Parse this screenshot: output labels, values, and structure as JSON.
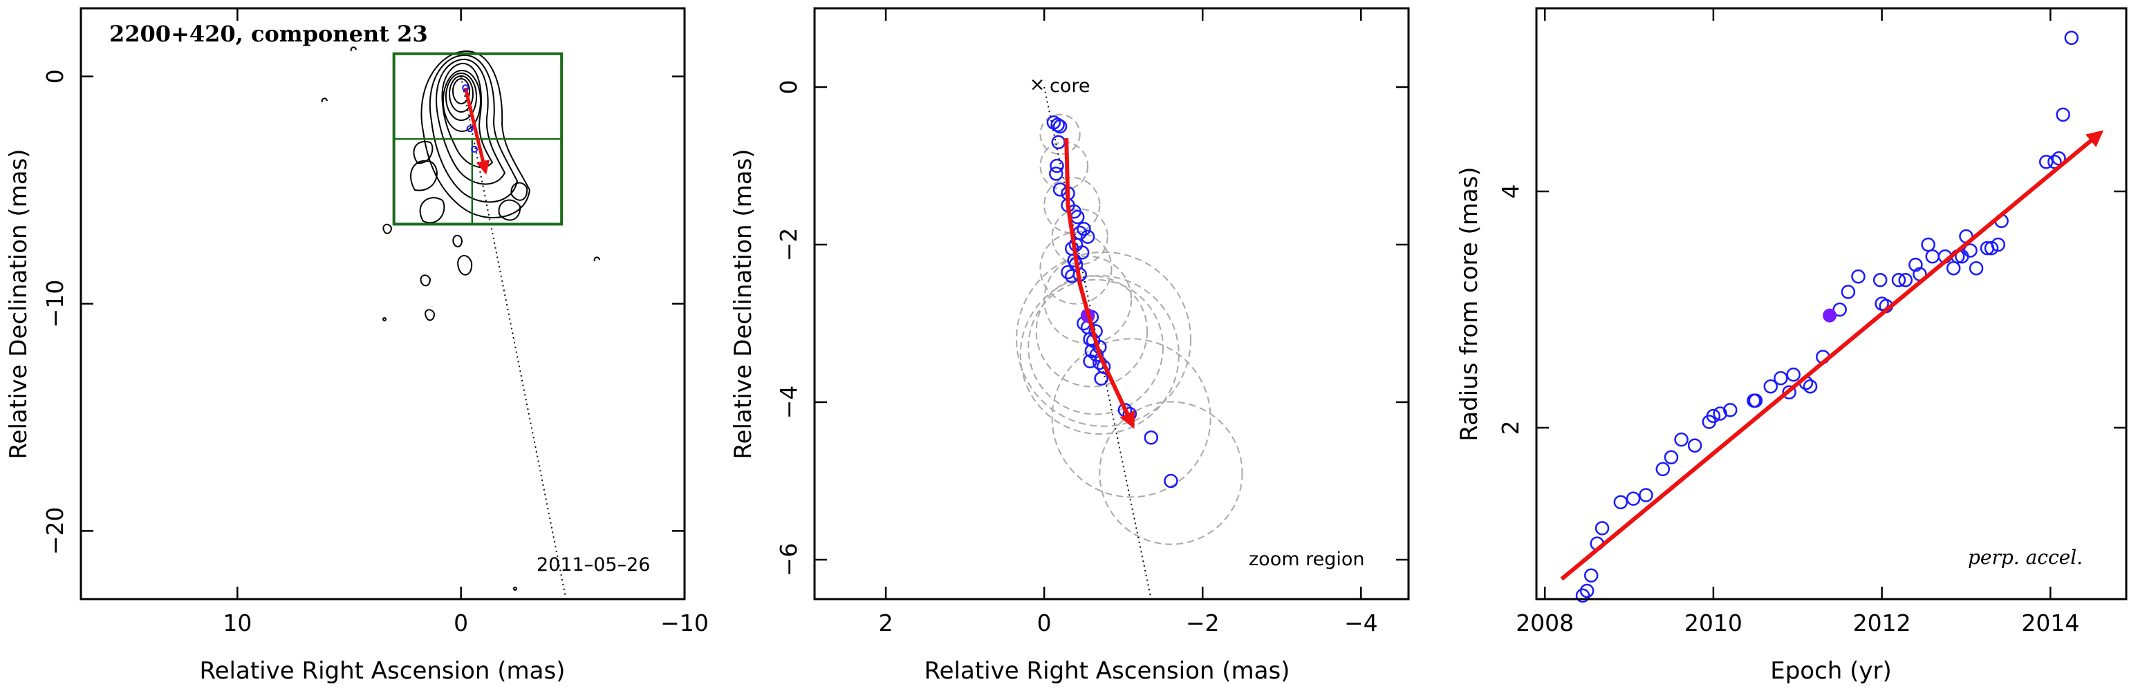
{
  "colors": {
    "points": "#1a1aff",
    "arrow": "#ee1111",
    "box": "#1a6b1a",
    "ellipses": "#a8a8a8",
    "filled_point": "#7a1aff"
  },
  "chart_data": [
    {
      "type": "scatter",
      "title": "2200+420, component 23",
      "date": "2011–05–26",
      "xlabel": "Relative Right Ascension (mas)",
      "ylabel": "Relative Declination (mas)",
      "xlim": [
        17,
        -10
      ],
      "ylim": [
        -23,
        3
      ],
      "xticks": [
        10,
        0,
        -10
      ],
      "yticks": [
        0,
        -10,
        -20
      ],
      "xtick_labels": [
        "10",
        "0",
        "−10"
      ],
      "ytick_labels": [
        "0",
        "−10",
        "−20"
      ],
      "zoom_box": {
        "x": [
          3,
          -4.5
        ],
        "y": [
          1,
          -6.5
        ]
      },
      "jet_axis": {
        "x": [
          0,
          -4.7
        ],
        "y": [
          0,
          -23
        ]
      },
      "feature_track": {
        "x": [
          -0.2,
          -1.1
        ],
        "y": [
          -0.5,
          -4.2
        ]
      }
    },
    {
      "type": "scatter",
      "xlabel": "Relative Right Ascension (mas)",
      "ylabel": "Relative Declination (mas)",
      "xlim": [
        2.9,
        -4.6
      ],
      "ylim": [
        -6.5,
        1
      ],
      "xticks": [
        2,
        0,
        -2,
        -4
      ],
      "yticks": [
        0,
        -2,
        -4,
        -6
      ],
      "xtick_labels": [
        "2",
        "0",
        "−2",
        "−4"
      ],
      "ytick_labels": [
        "0",
        "−2",
        "−4",
        "−6"
      ],
      "core_label": "core",
      "region_label": "zoom region",
      "points": [
        {
          "x": -0.12,
          "y": -0.45
        },
        {
          "x": -0.17,
          "y": -0.48
        },
        {
          "x": -0.2,
          "y": -0.5
        },
        {
          "x": -0.18,
          "y": -0.7
        },
        {
          "x": -0.16,
          "y": -1.0
        },
        {
          "x": -0.15,
          "y": -1.1
        },
        {
          "x": -0.2,
          "y": -1.3
        },
        {
          "x": -0.3,
          "y": -1.35
        },
        {
          "x": -0.3,
          "y": -1.5
        },
        {
          "x": -0.38,
          "y": -1.58
        },
        {
          "x": -0.42,
          "y": -1.65
        },
        {
          "x": -0.5,
          "y": -1.8
        },
        {
          "x": -0.45,
          "y": -1.85
        },
        {
          "x": -0.55,
          "y": -1.9
        },
        {
          "x": -0.4,
          "y": -2.0
        },
        {
          "x": -0.35,
          "y": -2.05
        },
        {
          "x": -0.48,
          "y": -2.1
        },
        {
          "x": -0.38,
          "y": -2.2
        },
        {
          "x": -0.4,
          "y": -2.25
        },
        {
          "x": -0.3,
          "y": -2.35
        },
        {
          "x": -0.35,
          "y": -2.4
        },
        {
          "x": -0.45,
          "y": -2.38
        },
        {
          "x": -0.55,
          "y": -2.9
        },
        {
          "x": -0.6,
          "y": -2.92
        },
        {
          "x": -0.5,
          "y": -3.0
        },
        {
          "x": -0.55,
          "y": -3.05
        },
        {
          "x": -0.65,
          "y": -3.1
        },
        {
          "x": -0.58,
          "y": -3.2
        },
        {
          "x": -0.62,
          "y": -3.22
        },
        {
          "x": -0.7,
          "y": -3.3
        },
        {
          "x": -0.6,
          "y": -3.35
        },
        {
          "x": -0.66,
          "y": -3.4
        },
        {
          "x": -0.58,
          "y": -3.48
        },
        {
          "x": -0.7,
          "y": -3.5
        },
        {
          "x": -0.75,
          "y": -3.55
        },
        {
          "x": -0.72,
          "y": -3.7
        },
        {
          "x": -1.02,
          "y": -4.1
        },
        {
          "x": -1.08,
          "y": -4.15
        },
        {
          "x": -1.35,
          "y": -4.45
        },
        {
          "x": -1.6,
          "y": -5.0
        }
      ],
      "filled_point": {
        "x": -0.55,
        "y": -2.9
      },
      "ellipses": [
        {
          "x": -0.2,
          "y": -0.6,
          "r": 0.25
        },
        {
          "x": -0.25,
          "y": -1.0,
          "r": 0.3
        },
        {
          "x": -0.35,
          "y": -1.5,
          "r": 0.35
        },
        {
          "x": -0.45,
          "y": -1.9,
          "r": 0.35
        },
        {
          "x": -0.4,
          "y": -2.3,
          "r": 0.45
        },
        {
          "x": -0.55,
          "y": -2.7,
          "r": 0.55
        },
        {
          "x": -0.6,
          "y": -3.1,
          "r": 0.7
        },
        {
          "x": -0.65,
          "y": -3.3,
          "r": 0.85
        },
        {
          "x": -0.7,
          "y": -3.4,
          "r": 1.0
        },
        {
          "x": -0.75,
          "y": -3.2,
          "r": 1.1
        },
        {
          "x": -1.1,
          "y": -4.2,
          "r": 1.0
        },
        {
          "x": -1.6,
          "y": -4.9,
          "r": 0.9
        }
      ],
      "jet_axis": {
        "x": [
          0,
          -1.35
        ],
        "y": [
          0,
          -6.5
        ]
      },
      "feature_track": {
        "x": [
          -0.28,
          -0.3,
          -0.45,
          -0.7,
          -1.12
        ],
        "y": [
          -0.65,
          -1.5,
          -2.5,
          -3.4,
          -4.3
        ]
      }
    },
    {
      "type": "scatter",
      "xlabel": "Epoch (yr)",
      "ylabel": "Radius from core (mas)",
      "annotation": "perp. accel.",
      "xlim": [
        2007.9,
        2014.9
      ],
      "ylim": [
        0.55,
        5.55
      ],
      "xticks": [
        2008,
        2010,
        2012,
        2014
      ],
      "yticks": [
        2,
        4
      ],
      "xtick_labels": [
        "2008",
        "2010",
        "2012",
        "2014"
      ],
      "ytick_labels": [
        "2",
        "4"
      ],
      "points": [
        {
          "x": 2008.45,
          "y": 0.58
        },
        {
          "x": 2008.5,
          "y": 0.62
        },
        {
          "x": 2008.55,
          "y": 0.75
        },
        {
          "x": 2008.62,
          "y": 1.02
        },
        {
          "x": 2008.68,
          "y": 1.15
        },
        {
          "x": 2008.9,
          "y": 1.37
        },
        {
          "x": 2009.05,
          "y": 1.4
        },
        {
          "x": 2009.2,
          "y": 1.43
        },
        {
          "x": 2009.4,
          "y": 1.65
        },
        {
          "x": 2009.5,
          "y": 1.75
        },
        {
          "x": 2009.62,
          "y": 1.9
        },
        {
          "x": 2009.78,
          "y": 1.85
        },
        {
          "x": 2009.95,
          "y": 2.05
        },
        {
          "x": 2010.0,
          "y": 2.1
        },
        {
          "x": 2010.08,
          "y": 2.12
        },
        {
          "x": 2010.2,
          "y": 2.15
        },
        {
          "x": 2010.48,
          "y": 2.23
        },
        {
          "x": 2010.5,
          "y": 2.23
        },
        {
          "x": 2010.68,
          "y": 2.35
        },
        {
          "x": 2010.8,
          "y": 2.42
        },
        {
          "x": 2010.9,
          "y": 2.3
        },
        {
          "x": 2010.95,
          "y": 2.45
        },
        {
          "x": 2011.1,
          "y": 2.38
        },
        {
          "x": 2011.15,
          "y": 2.35
        },
        {
          "x": 2011.3,
          "y": 2.6
        },
        {
          "x": 2011.5,
          "y": 3.0
        },
        {
          "x": 2011.6,
          "y": 3.15
        },
        {
          "x": 2011.72,
          "y": 3.28
        },
        {
          "x": 2011.98,
          "y": 3.25
        },
        {
          "x": 2012.0,
          "y": 3.05
        },
        {
          "x": 2012.05,
          "y": 3.03
        },
        {
          "x": 2012.2,
          "y": 3.25
        },
        {
          "x": 2012.28,
          "y": 3.25
        },
        {
          "x": 2012.4,
          "y": 3.38
        },
        {
          "x": 2012.45,
          "y": 3.3
        },
        {
          "x": 2012.55,
          "y": 3.55
        },
        {
          "x": 2012.6,
          "y": 3.45
        },
        {
          "x": 2012.75,
          "y": 3.45
        },
        {
          "x": 2012.85,
          "y": 3.35
        },
        {
          "x": 2012.9,
          "y": 3.45
        },
        {
          "x": 2012.95,
          "y": 3.45
        },
        {
          "x": 2013.0,
          "y": 3.62
        },
        {
          "x": 2013.05,
          "y": 3.5
        },
        {
          "x": 2013.12,
          "y": 3.35
        },
        {
          "x": 2013.25,
          "y": 3.52
        },
        {
          "x": 2013.3,
          "y": 3.52
        },
        {
          "x": 2013.38,
          "y": 3.55
        },
        {
          "x": 2013.42,
          "y": 3.75
        },
        {
          "x": 2013.95,
          "y": 4.25
        },
        {
          "x": 2014.05,
          "y": 4.25
        },
        {
          "x": 2014.1,
          "y": 4.28
        },
        {
          "x": 2014.15,
          "y": 4.65
        },
        {
          "x": 2014.25,
          "y": 5.3
        }
      ],
      "filled_point": {
        "x": 2011.38,
        "y": 2.95
      },
      "fit_arrow": {
        "x": [
          2008.2,
          2014.6
        ],
        "y": [
          0.72,
          4.5
        ]
      }
    }
  ]
}
